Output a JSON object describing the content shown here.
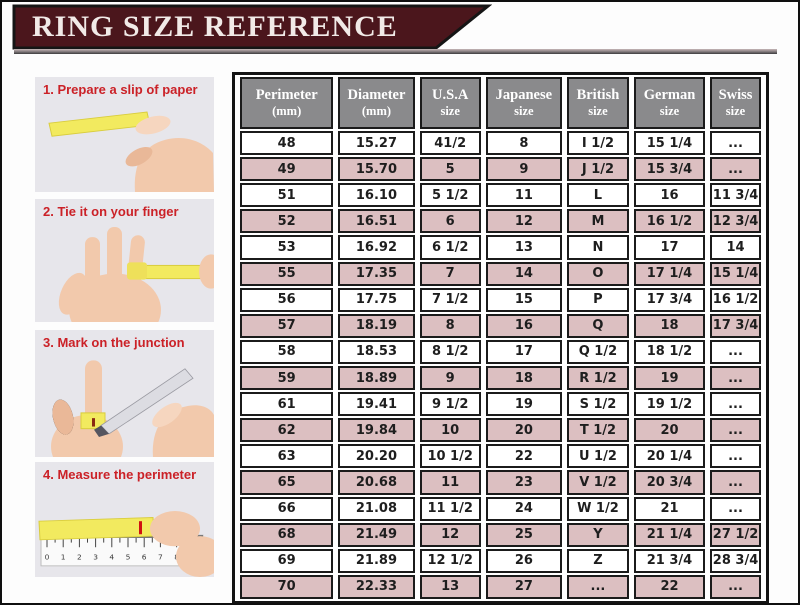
{
  "banner": {
    "title": "RING SIZE REFERENCE"
  },
  "steps": [
    {
      "label": "1. Prepare a slip of paper",
      "icon": "hand-holding-paper-slip"
    },
    {
      "label": "2. Tie it on your finger",
      "icon": "hand-with-paper-around-finger"
    },
    {
      "label": "3. Mark on the junction",
      "icon": "pen-marking-paper-on-finger"
    },
    {
      "label": "4. Measure the perimeter",
      "icon": "ruler-measuring-paper-strip",
      "ruler_numbers": [
        "0",
        "1",
        "2",
        "3",
        "4",
        "5",
        "6",
        "7",
        "8",
        "9"
      ]
    }
  ],
  "chart_data": {
    "type": "table",
    "title": "RING SIZE REFERENCE",
    "columns": [
      {
        "line1": "Perimeter",
        "line2": "(mm)"
      },
      {
        "line1": "Diameter",
        "line2": "(mm)"
      },
      {
        "line1": "U.S.A",
        "line2": "size"
      },
      {
        "line1": "Japanese",
        "line2": "size"
      },
      {
        "line1": "British",
        "line2": "size"
      },
      {
        "line1": "German",
        "line2": "size"
      },
      {
        "line1": "Swiss",
        "line2": "size"
      }
    ],
    "rows": [
      [
        "48",
        "15.27",
        "41/2",
        "8",
        "I 1/2",
        "15 1/4",
        "..."
      ],
      [
        "49",
        "15.70",
        "5",
        "9",
        "J 1/2",
        "15 3/4",
        "..."
      ],
      [
        "51",
        "16.10",
        "5 1/2",
        "11",
        "L",
        "16",
        "11 3/4"
      ],
      [
        "52",
        "16.51",
        "6",
        "12",
        "M",
        "16 1/2",
        "12 3/4"
      ],
      [
        "53",
        "16.92",
        "6 1/2",
        "13",
        "N",
        "17",
        "14"
      ],
      [
        "55",
        "17.35",
        "7",
        "14",
        "O",
        "17 1/4",
        "15 1/4"
      ],
      [
        "56",
        "17.75",
        "7 1/2",
        "15",
        "P",
        "17 3/4",
        "16 1/2"
      ],
      [
        "57",
        "18.19",
        "8",
        "16",
        "Q",
        "18",
        "17 3/4"
      ],
      [
        "58",
        "18.53",
        "8 1/2",
        "17",
        "Q 1/2",
        "18 1/2",
        "..."
      ],
      [
        "59",
        "18.89",
        "9",
        "18",
        "R 1/2",
        "19",
        "..."
      ],
      [
        "61",
        "19.41",
        "9 1/2",
        "19",
        "S 1/2",
        "19 1/2",
        "..."
      ],
      [
        "62",
        "19.84",
        "10",
        "20",
        "T 1/2",
        "20",
        "..."
      ],
      [
        "63",
        "20.20",
        "10 1/2",
        "22",
        "U 1/2",
        "20 1/4",
        "..."
      ],
      [
        "65",
        "20.68",
        "11",
        "23",
        "V 1/2",
        "20 3/4",
        "..."
      ],
      [
        "66",
        "21.08",
        "11 1/2",
        "24",
        "W 1/2",
        "21",
        "..."
      ],
      [
        "68",
        "21.49",
        "12",
        "25",
        "Y",
        "21 1/4",
        "27 1/2"
      ],
      [
        "69",
        "21.89",
        "12 1/2",
        "26",
        "Z",
        "21 3/4",
        "28 3/4"
      ],
      [
        "70",
        "22.33",
        "13",
        "27",
        "...",
        "22",
        "..."
      ]
    ],
    "striping": {
      "white_row_bg": "#ffffff",
      "pink_row_bg": "#dcbfc1"
    }
  },
  "colors": {
    "banner_bg": "#4b161c",
    "banner_text": "#f1eae7",
    "header_cell_bg": "#8a8a8c",
    "header_cell_text": "#ffffff",
    "row_pink": "#dcbfc1",
    "step_label_red": "#cb2127",
    "table_border": "#1b1b1b",
    "paper_slip_yellow": "#f2ea5f",
    "skin": "#f2c9ac"
  }
}
